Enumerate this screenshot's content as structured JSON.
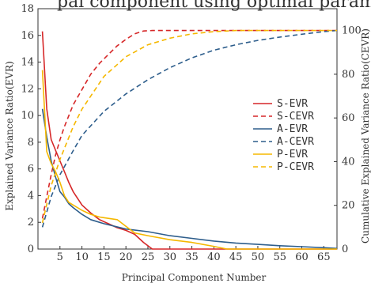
{
  "chart_data": {
    "type": "line",
    "title": "pal component using optimal parameters",
    "xlabel": "Principal Component Number",
    "ylabel": "Explained Variance Ratio(EVR)",
    "y2label": "Cumulative Explained Variance Ratio(CEVR)",
    "xlim": [
      0,
      68
    ],
    "ylim": [
      0,
      18
    ],
    "y2lim": [
      0,
      110
    ],
    "xticks": [
      5,
      10,
      15,
      20,
      25,
      30,
      35,
      40,
      45,
      50,
      55,
      60,
      65
    ],
    "yticks": [
      0,
      2,
      4,
      6,
      8,
      10,
      12,
      14,
      16,
      18
    ],
    "y2ticks": [
      0,
      20,
      40,
      60,
      80,
      100
    ],
    "grid": false,
    "legend_position": "right",
    "series": [
      {
        "name": "S-EVR",
        "axis": "left",
        "color": "#d62728",
        "dash": "solid",
        "x": [
          1,
          2,
          3,
          4,
          5,
          6,
          7,
          8,
          9,
          10,
          12,
          14,
          16,
          18,
          20,
          22,
          24,
          26,
          30,
          40,
          68
        ],
        "values": [
          16.3,
          10.5,
          8.2,
          7.4,
          6.6,
          5.8,
          5.0,
          4.3,
          3.8,
          3.3,
          2.7,
          2.2,
          1.9,
          1.6,
          1.4,
          1.1,
          0.5,
          0.0,
          0.0,
          0.0,
          0.0
        ]
      },
      {
        "name": "S-CEVR",
        "axis": "right",
        "color": "#d62728",
        "dash": "dashed",
        "x": [
          1,
          2,
          3,
          4,
          5,
          6,
          8,
          10,
          12,
          14,
          16,
          18,
          20,
          22,
          24,
          26,
          30,
          40,
          50,
          60,
          68
        ],
        "values": [
          14,
          24,
          34,
          43,
          50,
          56,
          66,
          73,
          80,
          85,
          89,
          93,
          96,
          98.5,
          99.8,
          100,
          100,
          100,
          100,
          100,
          100
        ]
      },
      {
        "name": "A-EVR",
        "axis": "left",
        "color": "#2e5e8c",
        "dash": "solid",
        "x": [
          1,
          2,
          3,
          4,
          5,
          6,
          7,
          8,
          10,
          12,
          15,
          20,
          25,
          30,
          35,
          40,
          45,
          50,
          55,
          60,
          65,
          68
        ],
        "values": [
          10.5,
          8.4,
          6.6,
          5.4,
          4.3,
          3.9,
          3.4,
          3.1,
          2.6,
          2.2,
          1.9,
          1.5,
          1.3,
          1.0,
          0.8,
          0.6,
          0.45,
          0.35,
          0.25,
          0.18,
          0.1,
          0.05
        ]
      },
      {
        "name": "A-CEVR",
        "axis": "right",
        "color": "#2e5e8c",
        "dash": "dashed",
        "x": [
          1,
          3,
          5,
          8,
          10,
          15,
          20,
          25,
          30,
          35,
          40,
          45,
          50,
          55,
          60,
          65,
          68
        ],
        "values": [
          10,
          24,
          34,
          45,
          52,
          63,
          71,
          77.5,
          83,
          87.5,
          91,
          93.5,
          95.5,
          97,
          98.3,
          99.5,
          100
        ]
      },
      {
        "name": "P-EVR",
        "axis": "left",
        "color": "#f5b800",
        "dash": "solid",
        "x": [
          1,
          2,
          3,
          4,
          5,
          6,
          7,
          8,
          10,
          12,
          14,
          16,
          18,
          20,
          22,
          25,
          30,
          35,
          40,
          43,
          50,
          68
        ],
        "values": [
          13.4,
          7.3,
          6.4,
          5.8,
          5.0,
          4.0,
          3.5,
          3.3,
          2.9,
          2.6,
          2.4,
          2.3,
          2.2,
          1.7,
          1.2,
          1.0,
          0.7,
          0.5,
          0.2,
          0.0,
          0.0,
          0.0
        ]
      },
      {
        "name": "P-CEVR",
        "axis": "right",
        "color": "#f5b800",
        "dash": "dashed",
        "x": [
          1,
          3,
          5,
          8,
          10,
          15,
          20,
          25,
          30,
          35,
          40,
          45,
          50,
          55,
          60,
          68
        ],
        "values": [
          12,
          29,
          41,
          56,
          64,
          79,
          88,
          93.5,
          96.5,
          98.5,
          99.5,
          100,
          100,
          100,
          100,
          100
        ]
      }
    ]
  }
}
